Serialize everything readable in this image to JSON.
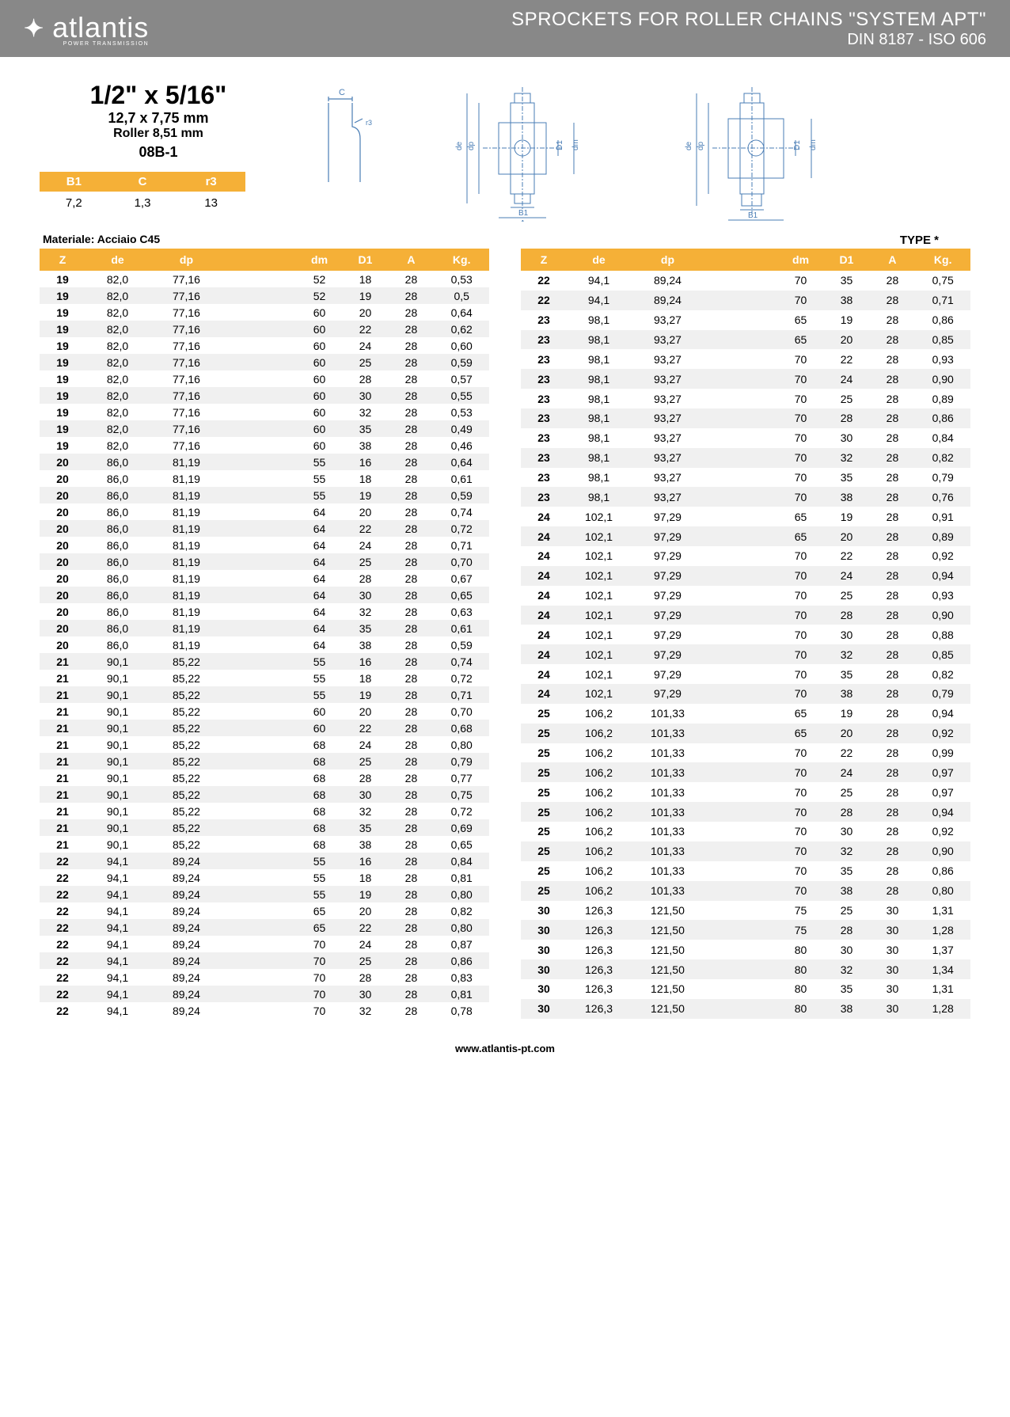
{
  "brand": {
    "name": "atlantis",
    "tagline": "POWER TRANSMISSION"
  },
  "header": {
    "title": "SPROCKETS FOR ROLLER CHAINS \"SYSTEM APT\"",
    "subtitle": "DIN 8187 - ISO 606"
  },
  "spec": {
    "size_imperial": "1/2\" x 5/16\"",
    "size_mm": "12,7 x 7,75 mm",
    "roller": "Roller 8,51 mm",
    "code": "08B-1"
  },
  "params": {
    "headers": [
      "B1",
      "C",
      "r3"
    ],
    "values": [
      "7,2",
      "1,3",
      "13"
    ]
  },
  "material_label": "Materiale: Acciaio C45",
  "type_label": "TYPE *",
  "table_headers": [
    "Z",
    "de",
    "dp",
    "dm",
    "D1",
    "A",
    "Kg."
  ],
  "footer_url": "www.atlantis-pt.com",
  "colors": {
    "banner_bg": "#888888",
    "header_bg": "#f5b037",
    "alt_row": "#f0f0f0",
    "diagram_stroke": "#4a7db5"
  },
  "left_rows": [
    [
      "19",
      "82,0",
      "77,16",
      "52",
      "18",
      "28",
      "0,53"
    ],
    [
      "19",
      "82,0",
      "77,16",
      "52",
      "19",
      "28",
      "0,5"
    ],
    [
      "19",
      "82,0",
      "77,16",
      "60",
      "20",
      "28",
      "0,64"
    ],
    [
      "19",
      "82,0",
      "77,16",
      "60",
      "22",
      "28",
      "0,62"
    ],
    [
      "19",
      "82,0",
      "77,16",
      "60",
      "24",
      "28",
      "0,60"
    ],
    [
      "19",
      "82,0",
      "77,16",
      "60",
      "25",
      "28",
      "0,59"
    ],
    [
      "19",
      "82,0",
      "77,16",
      "60",
      "28",
      "28",
      "0,57"
    ],
    [
      "19",
      "82,0",
      "77,16",
      "60",
      "30",
      "28",
      "0,55"
    ],
    [
      "19",
      "82,0",
      "77,16",
      "60",
      "32",
      "28",
      "0,53"
    ],
    [
      "19",
      "82,0",
      "77,16",
      "60",
      "35",
      "28",
      "0,49"
    ],
    [
      "19",
      "82,0",
      "77,16",
      "60",
      "38",
      "28",
      "0,46"
    ],
    [
      "20",
      "86,0",
      "81,19",
      "55",
      "16",
      "28",
      "0,64"
    ],
    [
      "20",
      "86,0",
      "81,19",
      "55",
      "18",
      "28",
      "0,61"
    ],
    [
      "20",
      "86,0",
      "81,19",
      "55",
      "19",
      "28",
      "0,59"
    ],
    [
      "20",
      "86,0",
      "81,19",
      "64",
      "20",
      "28",
      "0,74"
    ],
    [
      "20",
      "86,0",
      "81,19",
      "64",
      "22",
      "28",
      "0,72"
    ],
    [
      "20",
      "86,0",
      "81,19",
      "64",
      "24",
      "28",
      "0,71"
    ],
    [
      "20",
      "86,0",
      "81,19",
      "64",
      "25",
      "28",
      "0,70"
    ],
    [
      "20",
      "86,0",
      "81,19",
      "64",
      "28",
      "28",
      "0,67"
    ],
    [
      "20",
      "86,0",
      "81,19",
      "64",
      "30",
      "28",
      "0,65"
    ],
    [
      "20",
      "86,0",
      "81,19",
      "64",
      "32",
      "28",
      "0,63"
    ],
    [
      "20",
      "86,0",
      "81,19",
      "64",
      "35",
      "28",
      "0,61"
    ],
    [
      "20",
      "86,0",
      "81,19",
      "64",
      "38",
      "28",
      "0,59"
    ],
    [
      "21",
      "90,1",
      "85,22",
      "55",
      "16",
      "28",
      "0,74"
    ],
    [
      "21",
      "90,1",
      "85,22",
      "55",
      "18",
      "28",
      "0,72"
    ],
    [
      "21",
      "90,1",
      "85,22",
      "55",
      "19",
      "28",
      "0,71"
    ],
    [
      "21",
      "90,1",
      "85,22",
      "60",
      "20",
      "28",
      "0,70"
    ],
    [
      "21",
      "90,1",
      "85,22",
      "60",
      "22",
      "28",
      "0,68"
    ],
    [
      "21",
      "90,1",
      "85,22",
      "68",
      "24",
      "28",
      "0,80"
    ],
    [
      "21",
      "90,1",
      "85,22",
      "68",
      "25",
      "28",
      "0,79"
    ],
    [
      "21",
      "90,1",
      "85,22",
      "68",
      "28",
      "28",
      "0,77"
    ],
    [
      "21",
      "90,1",
      "85,22",
      "68",
      "30",
      "28",
      "0,75"
    ],
    [
      "21",
      "90,1",
      "85,22",
      "68",
      "32",
      "28",
      "0,72"
    ],
    [
      "21",
      "90,1",
      "85,22",
      "68",
      "35",
      "28",
      "0,69"
    ],
    [
      "21",
      "90,1",
      "85,22",
      "68",
      "38",
      "28",
      "0,65"
    ],
    [
      "22",
      "94,1",
      "89,24",
      "55",
      "16",
      "28",
      "0,84"
    ],
    [
      "22",
      "94,1",
      "89,24",
      "55",
      "18",
      "28",
      "0,81"
    ],
    [
      "22",
      "94,1",
      "89,24",
      "55",
      "19",
      "28",
      "0,80"
    ],
    [
      "22",
      "94,1",
      "89,24",
      "65",
      "20",
      "28",
      "0,82"
    ],
    [
      "22",
      "94,1",
      "89,24",
      "65",
      "22",
      "28",
      "0,80"
    ],
    [
      "22",
      "94,1",
      "89,24",
      "70",
      "24",
      "28",
      "0,87"
    ],
    [
      "22",
      "94,1",
      "89,24",
      "70",
      "25",
      "28",
      "0,86"
    ],
    [
      "22",
      "94,1",
      "89,24",
      "70",
      "28",
      "28",
      "0,83"
    ],
    [
      "22",
      "94,1",
      "89,24",
      "70",
      "30",
      "28",
      "0,81"
    ],
    [
      "22",
      "94,1",
      "89,24",
      "70",
      "32",
      "28",
      "0,78"
    ]
  ],
  "right_rows": [
    [
      "22",
      "94,1",
      "89,24",
      "70",
      "35",
      "28",
      "0,75"
    ],
    [
      "22",
      "94,1",
      "89,24",
      "70",
      "38",
      "28",
      "0,71"
    ],
    [
      "23",
      "98,1",
      "93,27",
      "65",
      "19",
      "28",
      "0,86"
    ],
    [
      "23",
      "98,1",
      "93,27",
      "65",
      "20",
      "28",
      "0,85"
    ],
    [
      "23",
      "98,1",
      "93,27",
      "70",
      "22",
      "28",
      "0,93"
    ],
    [
      "23",
      "98,1",
      "93,27",
      "70",
      "24",
      "28",
      "0,90"
    ],
    [
      "23",
      "98,1",
      "93,27",
      "70",
      "25",
      "28",
      "0,89"
    ],
    [
      "23",
      "98,1",
      "93,27",
      "70",
      "28",
      "28",
      "0,86"
    ],
    [
      "23",
      "98,1",
      "93,27",
      "70",
      "30",
      "28",
      "0,84"
    ],
    [
      "23",
      "98,1",
      "93,27",
      "70",
      "32",
      "28",
      "0,82"
    ],
    [
      "23",
      "98,1",
      "93,27",
      "70",
      "35",
      "28",
      "0,79"
    ],
    [
      "23",
      "98,1",
      "93,27",
      "70",
      "38",
      "28",
      "0,76"
    ],
    [
      "24",
      "102,1",
      "97,29",
      "65",
      "19",
      "28",
      "0,91"
    ],
    [
      "24",
      "102,1",
      "97,29",
      "65",
      "20",
      "28",
      "0,89"
    ],
    [
      "24",
      "102,1",
      "97,29",
      "70",
      "22",
      "28",
      "0,92"
    ],
    [
      "24",
      "102,1",
      "97,29",
      "70",
      "24",
      "28",
      "0,94"
    ],
    [
      "24",
      "102,1",
      "97,29",
      "70",
      "25",
      "28",
      "0,93"
    ],
    [
      "24",
      "102,1",
      "97,29",
      "70",
      "28",
      "28",
      "0,90"
    ],
    [
      "24",
      "102,1",
      "97,29",
      "70",
      "30",
      "28",
      "0,88"
    ],
    [
      "24",
      "102,1",
      "97,29",
      "70",
      "32",
      "28",
      "0,85"
    ],
    [
      "24",
      "102,1",
      "97,29",
      "70",
      "35",
      "28",
      "0,82"
    ],
    [
      "24",
      "102,1",
      "97,29",
      "70",
      "38",
      "28",
      "0,79"
    ],
    [
      "25",
      "106,2",
      "101,33",
      "65",
      "19",
      "28",
      "0,94"
    ],
    [
      "25",
      "106,2",
      "101,33",
      "65",
      "20",
      "28",
      "0,92"
    ],
    [
      "25",
      "106,2",
      "101,33",
      "70",
      "22",
      "28",
      "0,99"
    ],
    [
      "25",
      "106,2",
      "101,33",
      "70",
      "24",
      "28",
      "0,97"
    ],
    [
      "25",
      "106,2",
      "101,33",
      "70",
      "25",
      "28",
      "0,97"
    ],
    [
      "25",
      "106,2",
      "101,33",
      "70",
      "28",
      "28",
      "0,94"
    ],
    [
      "25",
      "106,2",
      "101,33",
      "70",
      "30",
      "28",
      "0,92"
    ],
    [
      "25",
      "106,2",
      "101,33",
      "70",
      "32",
      "28",
      "0,90"
    ],
    [
      "25",
      "106,2",
      "101,33",
      "70",
      "35",
      "28",
      "0,86"
    ],
    [
      "25",
      "106,2",
      "101,33",
      "70",
      "38",
      "28",
      "0,80"
    ],
    [
      "30",
      "126,3",
      "121,50",
      "75",
      "25",
      "30",
      "1,31"
    ],
    [
      "30",
      "126,3",
      "121,50",
      "75",
      "28",
      "30",
      "1,28"
    ],
    [
      "30",
      "126,3",
      "121,50",
      "80",
      "30",
      "30",
      "1,37"
    ],
    [
      "30",
      "126,3",
      "121,50",
      "80",
      "32",
      "30",
      "1,34"
    ],
    [
      "30",
      "126,3",
      "121,50",
      "80",
      "35",
      "30",
      "1,31"
    ],
    [
      "30",
      "126,3",
      "121,50",
      "80",
      "38",
      "30",
      "1,28"
    ]
  ]
}
